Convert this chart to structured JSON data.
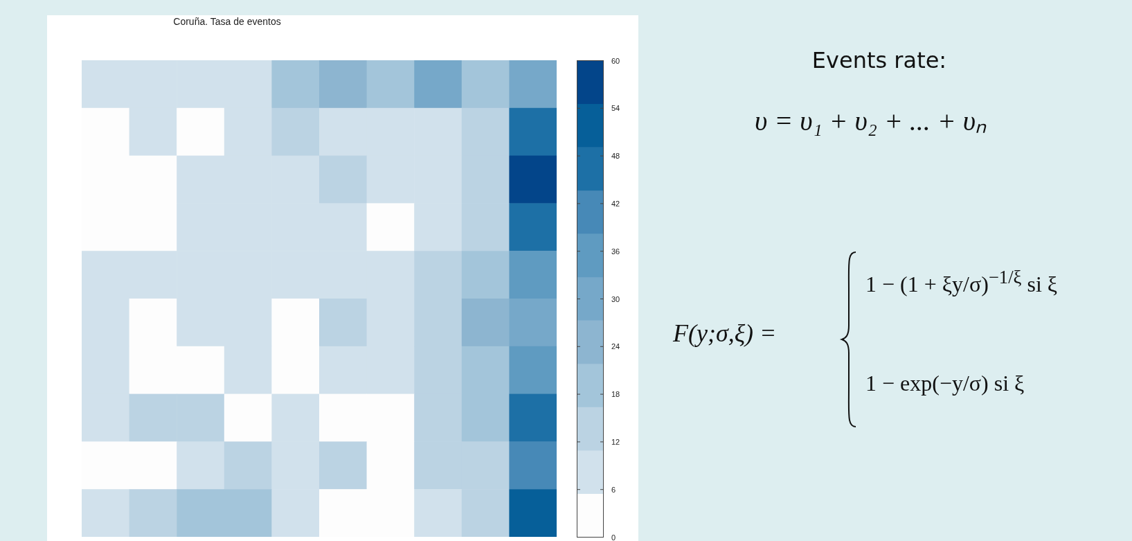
{
  "chart_data": [
    {
      "type": "heatmap",
      "title": "Coruña. Tasa de eventos",
      "categories": [
        null,
        null,
        null,
        null,
        null,
        null,
        null,
        null,
        null,
        null
      ],
      "y_categories": [
        null,
        null,
        null,
        null,
        null,
        null,
        null,
        null,
        null,
        null
      ],
      "cells": [
        [
          8,
          8,
          8,
          8,
          19,
          25,
          19,
          30,
          19,
          30
        ],
        [
          3,
          8,
          3,
          8,
          14,
          8,
          8,
          8,
          14,
          46
        ],
        [
          3,
          3,
          8,
          8,
          8,
          14,
          8,
          8,
          14,
          57
        ],
        [
          3,
          3,
          8,
          8,
          8,
          8,
          3,
          8,
          14,
          46
        ],
        [
          8,
          8,
          8,
          8,
          8,
          8,
          8,
          14,
          19,
          35
        ],
        [
          8,
          3,
          8,
          8,
          3,
          14,
          8,
          14,
          25,
          30
        ],
        [
          8,
          3,
          3,
          8,
          3,
          8,
          8,
          14,
          19,
          35
        ],
        [
          8,
          14,
          14,
          3,
          8,
          3,
          3,
          14,
          19,
          46
        ],
        [
          3,
          3,
          8,
          14,
          8,
          14,
          3,
          14,
          14,
          41
        ],
        [
          8,
          14,
          19,
          19,
          8,
          3,
          3,
          8,
          14,
          52
        ]
      ],
      "colors": [
        "#fdfdfd",
        "#d1e1ec",
        "#bbd3e3",
        "#a3c5da",
        "#8db5d0",
        "#76a8c9",
        "#5f9bc1",
        "#4789b7",
        "#1d70a6",
        "#065f99",
        "#03458a"
      ],
      "clim": [
        0,
        60
      ],
      "cticks": [
        0,
        6,
        12,
        18,
        24,
        30,
        36,
        42,
        48,
        54,
        60
      ],
      "tick_labels": false
    },
    {
      "type": "other",
      "title": "Events rate:",
      "annotations": [
        "υ = υ₁ + υ₂ + ... + υₙ",
        "F(y;σ,ξ) =",
        "1 − (1 + ξy/σ)$^{−1/ξ}$    si ξ",
        "1 − exp(−y/σ)    si ξ"
      ]
    }
  ]
}
